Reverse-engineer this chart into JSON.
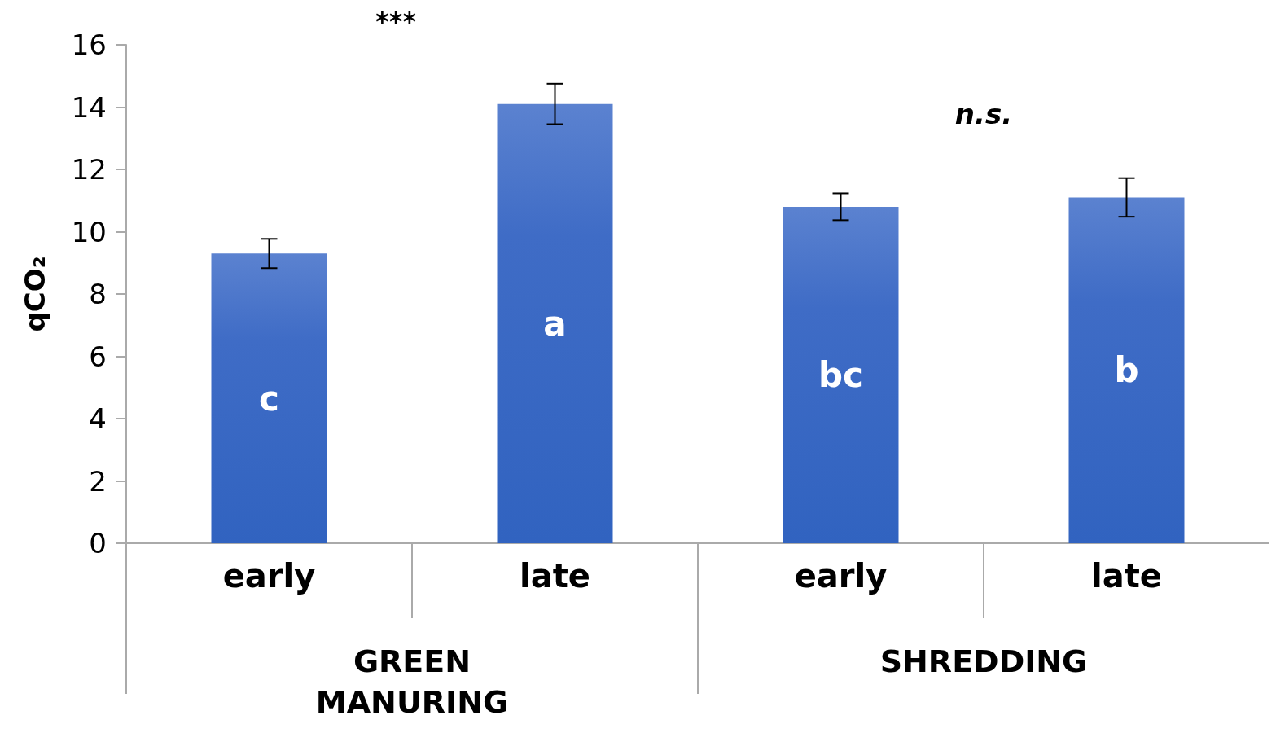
{
  "chart_data": {
    "type": "bar",
    "categories": [
      "early",
      "late",
      "early",
      "late"
    ],
    "values": [
      9.3,
      14.1,
      10.8,
      11.1
    ],
    "errors": [
      0.47,
      0.65,
      0.43,
      0.62
    ],
    "value_labels": [
      "c",
      "a",
      "bc",
      "b"
    ],
    "color": "#3f6cc6",
    "ylabel": "qCO₂",
    "ylim": [
      0,
      16
    ],
    "yticks": [
      0,
      2,
      4,
      6,
      8,
      10,
      12,
      14,
      16
    ],
    "annotations": [
      "***",
      "n.s.",
      "GREEN\nMANURING",
      "SHREDDING"
    ],
    "grid": false
  }
}
